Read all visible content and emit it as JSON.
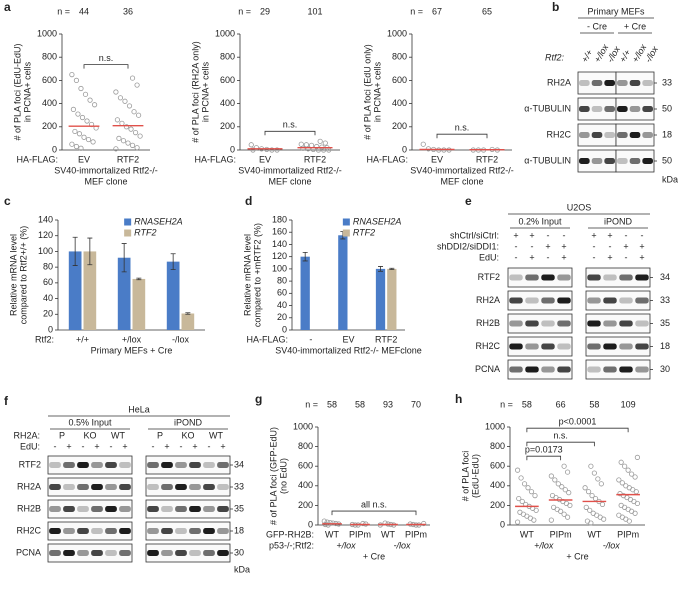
{
  "chart_data": [
    {
      "type": "dot",
      "panel": "a",
      "ylabel": [
        "# of PLA foci (EdU-EdU)",
        "in PCNA+ cells"
      ],
      "ylim": [
        0,
        1000
      ],
      "yticks": [
        0,
        200,
        400,
        600,
        800,
        1000
      ],
      "n_label": "n =",
      "n": [
        44,
        36
      ],
      "categories": [
        "EV",
        "RTF2"
      ],
      "x_prefix": "HA-FLAG:",
      "xlabel": [
        "SV40-immortalized Rtf2-/-",
        "MEF clone"
      ],
      "point_color": "#9a9a9a",
      "mean_color": "#e0504a",
      "mean": [
        205,
        210
      ],
      "points": [
        [
          650,
          600,
          530,
          480,
          430,
          390,
          350,
          310,
          280,
          250,
          220,
          190,
          160,
          140,
          110,
          90,
          70,
          50,
          30,
          15
        ],
        [
          620,
          560,
          500,
          450,
          420,
          380,
          330,
          300,
          260,
          230,
          200,
          180,
          150,
          120,
          100,
          80,
          60,
          40,
          20,
          10
        ]
      ],
      "annotations": [
        {
          "text": "n.s.",
          "from": 0,
          "to": 1
        }
      ]
    },
    {
      "type": "dot",
      "ylabel": [
        "# of PLA foci (RH2A only)",
        "in PCNA+ cells"
      ],
      "ylim": [
        0,
        1000
      ],
      "yticks": [
        0,
        200,
        400,
        600,
        800,
        1000
      ],
      "n_label": "n =",
      "n": [
        29,
        101
      ],
      "categories": [
        "EV",
        "RTF2"
      ],
      "x_prefix": "HA-FLAG:",
      "xlabel": [
        "SV40-immortalized Rtf2-/-",
        "MEF clone"
      ],
      "point_color": "#9a9a9a",
      "mean_color": "#e0504a",
      "mean": [
        10,
        20
      ],
      "points": [
        [
          45,
          20,
          10,
          5,
          0,
          0,
          0
        ],
        [
          75,
          60,
          50,
          45,
          40,
          30,
          25,
          20,
          15,
          10,
          5,
          0,
          0,
          0
        ]
      ],
      "annotations": [
        {
          "text": "n.s.",
          "from": 0,
          "to": 1
        }
      ]
    },
    {
      "type": "dot",
      "ylabel": [
        "# of PLA foci (EdU only)",
        "in PCNA+ cells"
      ],
      "ylim": [
        0,
        1000
      ],
      "yticks": [
        0,
        200,
        400,
        600,
        800,
        1000
      ],
      "n_label": "n =",
      "n": [
        67,
        65
      ],
      "categories": [
        "EV",
        "RTF2"
      ],
      "x_prefix": "HA-FLAG:",
      "xlabel": [
        "SV40-immortalized Rtf2-/-",
        "MEF clone"
      ],
      "point_color": "#9a9a9a",
      "mean_color": "#e0504a",
      "mean": [
        5,
        3
      ],
      "points": [
        [
          50,
          10,
          5,
          0,
          0,
          0
        ],
        [
          5,
          0,
          0,
          0,
          0
        ]
      ],
      "annotations": [
        {
          "text": "n.s.",
          "from": 0,
          "to": 1
        }
      ]
    },
    {
      "type": "bar",
      "panel": "c",
      "ylabel": [
        "Relative mRNA level",
        "compared to Rtf2+/+ (%)"
      ],
      "ylim": [
        0,
        140
      ],
      "yticks": [
        0,
        20,
        40,
        60,
        80,
        100,
        120,
        140
      ],
      "categories": [
        "+/+",
        "+/lox",
        "-/lox"
      ],
      "x_prefix": "Rtf2:",
      "xlabel": [
        "Primary MEFs + Cre"
      ],
      "series": [
        {
          "name": "RNASEH2A",
          "color": "#4a7cc7",
          "values": [
            100,
            92,
            87
          ],
          "errors": [
            18,
            18,
            10
          ]
        },
        {
          "name": "RTF2",
          "color": "#c8b89a",
          "values": [
            100,
            65,
            21
          ],
          "errors": [
            17,
            1,
            1
          ]
        }
      ]
    },
    {
      "type": "bar",
      "panel": "d",
      "ylabel": [
        "Relative  mRNA level",
        "compared to +mRTF2 (%)"
      ],
      "ylim": [
        0,
        180
      ],
      "yticks": [
        0,
        20,
        40,
        60,
        80,
        100,
        120,
        140,
        160,
        180
      ],
      "categories": [
        "-",
        "EV",
        "RTF2"
      ],
      "x_prefix": "HA-FLAG:",
      "xlabel": [
        "SV40-immortalized Rtf2-/- MEFclone"
      ],
      "series": [
        {
          "name": "RNASEH2A",
          "color": "#4a7cc7",
          "values": [
            120,
            155,
            100
          ],
          "errors": [
            7,
            6,
            4
          ]
        },
        {
          "name": "RTF2",
          "color": "#c8b89a",
          "values": [
            null,
            null,
            100
          ],
          "errors": [
            null,
            null,
            1
          ]
        }
      ]
    },
    {
      "type": "dot",
      "panel": "g",
      "ylabel": [
        "# of PLA foci (GFP-EdU)",
        "(no EdU)"
      ],
      "ylim": [
        0,
        1000
      ],
      "yticks": [
        0,
        200,
        400,
        600,
        800,
        1000
      ],
      "n_label": "n =",
      "n": [
        58,
        58,
        93,
        70
      ],
      "categories": [
        "WT",
        "PIPm",
        "WT",
        "PIPm"
      ],
      "x_prefix": "GFP-RH2B:",
      "group_prefix": "p53-/-;Rtf2:",
      "groups": [
        "+/lox",
        "-/lox"
      ],
      "xlabel": [
        "+ Cre"
      ],
      "point_color": "#9a9a9a",
      "mean_color": "#e0504a",
      "mean": [
        12,
        5,
        5,
        5
      ],
      "points": [
        [
          40,
          30,
          25,
          20,
          15,
          10,
          5,
          0
        ],
        [
          15,
          10,
          5,
          0,
          0
        ],
        [
          20,
          10,
          5,
          0,
          0
        ],
        [
          15,
          10,
          5,
          0,
          0
        ]
      ],
      "annotations": [
        {
          "text": "all n.s.",
          "from": 0,
          "to": 3
        }
      ]
    },
    {
      "type": "dot",
      "panel": "h",
      "ylabel": [
        "# of PLA foci",
        "(EdU-EdU)"
      ],
      "ylim": [
        0,
        1000
      ],
      "yticks": [
        0,
        200,
        400,
        600,
        800,
        1000
      ],
      "n_label": "n =",
      "n": [
        58,
        66,
        58,
        109
      ],
      "categories": [
        "WT",
        "PIPm",
        "WT",
        "PIPm"
      ],
      "groups": [
        "+/lox",
        "-/lox"
      ],
      "xlabel": [
        "+ Cre"
      ],
      "point_color": "#9a9a9a",
      "mean_color": "#e0504a",
      "mean": [
        190,
        255,
        240,
        310
      ],
      "points": [
        [
          560,
          480,
          420,
          380,
          340,
          300,
          270,
          240,
          210,
          190,
          170,
          150,
          130,
          110,
          90,
          70,
          50,
          30
        ],
        [
          600,
          540,
          500,
          460,
          420,
          390,
          360,
          330,
          300,
          280,
          260,
          240,
          220,
          200,
          180,
          160,
          140,
          110,
          80,
          50
        ],
        [
          600,
          530,
          470,
          420,
          380,
          340,
          300,
          270,
          240,
          210,
          180,
          150,
          120,
          100,
          80,
          60,
          40,
          20
        ],
        [
          690,
          640,
          600,
          560,
          520,
          490,
          460,
          430,
          400,
          380,
          360,
          340,
          320,
          300,
          280,
          260,
          240,
          220,
          200,
          180,
          160,
          140,
          120,
          100,
          80,
          60,
          40
        ]
      ],
      "annotations": [
        {
          "text": "p=0.0173",
          "from": 0,
          "to": 1
        },
        {
          "text": "n.s.",
          "from": 0,
          "to": 2
        },
        {
          "text": "p<0.0001",
          "from": 0,
          "to": 3
        }
      ]
    }
  ],
  "blots": [
    {
      "panel": "b",
      "title": "Primary MEFs",
      "groups": [
        "- Cre",
        "+ Cre"
      ],
      "conditions": [
        {
          "label": "Rtf2:",
          "values": [
            "+/+",
            "+/lox",
            "-/lox",
            "+/+",
            "+/lox",
            "-/lox"
          ]
        }
      ],
      "rows": [
        {
          "label": "RH2A",
          "kda": 33
        },
        {
          "label": "α-TUBULIN",
          "kda": 50
        },
        {
          "label": "RH2C",
          "kda": 18
        },
        {
          "label": "α-TUBULIN",
          "kda": 50
        }
      ],
      "kda_unit": "kDa"
    },
    {
      "panel": "e",
      "title": "U2OS",
      "groups": [
        "0.2% Input",
        "iPOND"
      ],
      "conditions": [
        {
          "label": "shCtrl/siCtrl:",
          "values": [
            "+",
            "+",
            "-",
            "-",
            "+",
            "+",
            "-",
            "-"
          ]
        },
        {
          "label": "shDDI2/siDDI1:",
          "values": [
            "-",
            "-",
            "+",
            "+",
            "-",
            "-",
            "+",
            "+"
          ]
        },
        {
          "label": "EdU:",
          "values": [
            "-",
            "+",
            "-",
            "+",
            "-",
            "+",
            "-",
            "+"
          ]
        }
      ],
      "rows": [
        {
          "label": "RTF2",
          "kda": 34
        },
        {
          "label": "RH2A",
          "kda": 33
        },
        {
          "label": "RH2B",
          "kda": 35
        },
        {
          "label": "RH2C",
          "kda": 18
        },
        {
          "label": "PCNA",
          "kda": 30
        }
      ]
    },
    {
      "panel": "f",
      "title": "HeLa",
      "groups": [
        "0.5% Input",
        "iPOND"
      ],
      "conditions": [
        {
          "label": "RH2A:",
          "values": [
            "P",
            null,
            "KO",
            null,
            "WT",
            null,
            "P",
            null,
            "KO",
            null,
            "WT",
            null
          ]
        },
        {
          "label": "EdU:",
          "values": [
            "-",
            "+",
            "-",
            "+",
            "-",
            "+",
            "-",
            "+",
            "-",
            "+",
            "-",
            "+"
          ]
        }
      ],
      "rows": [
        {
          "label": "RTF2",
          "kda": 34
        },
        {
          "label": "RH2A",
          "kda": 33
        },
        {
          "label": "RH2B",
          "kda": 35
        },
        {
          "label": "RH2C",
          "kda": 18
        },
        {
          "label": "PCNA",
          "kda": 30
        }
      ],
      "kda_unit": "kDa"
    }
  ]
}
